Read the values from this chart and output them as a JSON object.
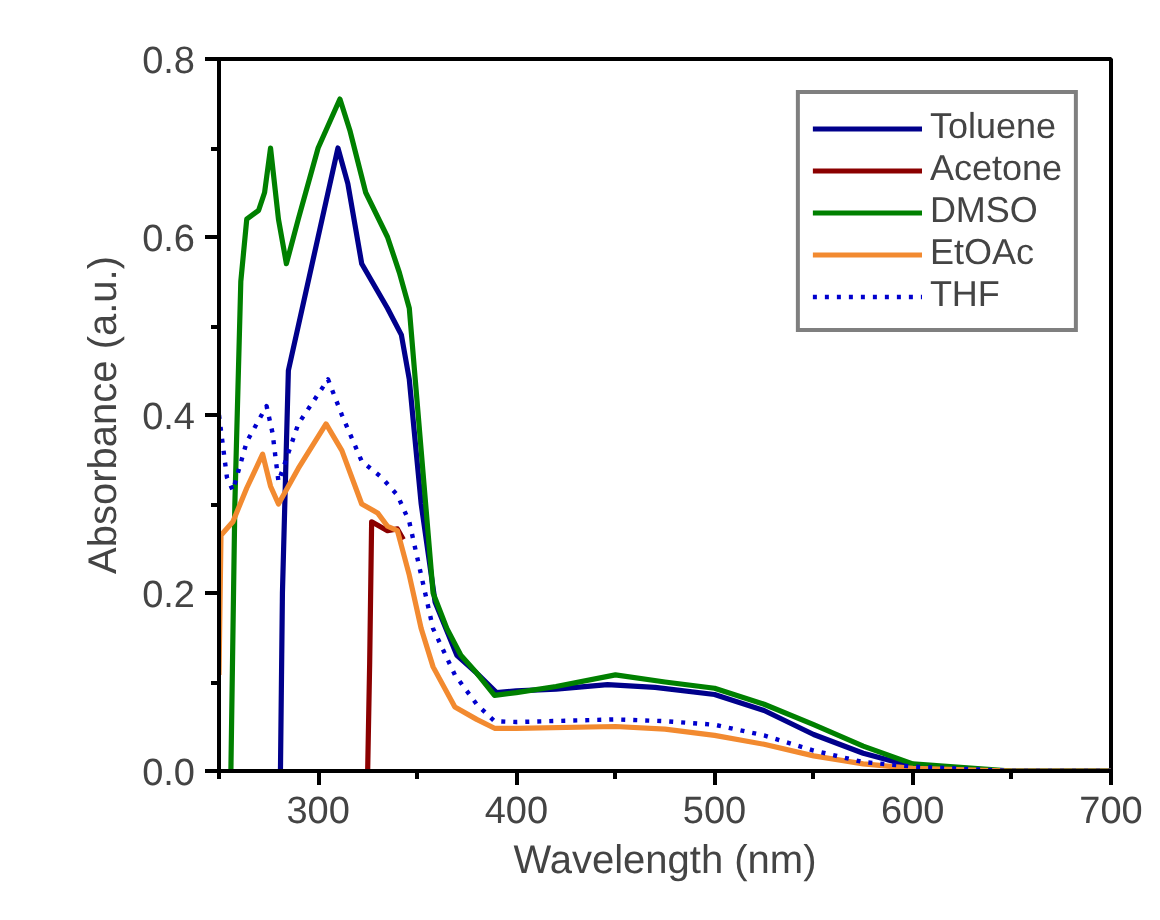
{
  "chart_data": {
    "type": "line",
    "xlabel": "Wavelength (nm)",
    "ylabel": "Absorbance (a.u.)",
    "xlim": [
      250,
      700
    ],
    "ylim": [
      0,
      0.8
    ],
    "xticks": [
      {
        "value": 250,
        "label": null
      },
      300,
      {
        "value": 350,
        "label": null
      },
      400,
      {
        "value": 450,
        "label": null
      },
      500,
      {
        "value": 550,
        "label": null
      },
      600,
      {
        "value": 650,
        "label": null
      },
      700
    ],
    "yticks": [
      "0.0",
      {
        "value": 0.1,
        "label": null
      },
      0.2,
      {
        "value": 0.3,
        "label": null
      },
      0.4,
      {
        "value": 0.5,
        "label": null
      },
      0.6,
      {
        "value": 0.7,
        "label": null
      },
      0.8
    ],
    "grid": false,
    "legend": "top right",
    "marker": "none",
    "series": [
      {
        "name": "Toluene",
        "color": "#00008b",
        "line_style": "solid",
        "x": [
          281,
          282,
          285,
          290,
          300,
          310,
          315,
          322,
          335,
          342,
          346,
          352,
          359,
          370,
          380,
          390,
          400,
          420,
          446,
          470,
          500,
          525,
          550,
          575,
          600,
          620,
          650,
          700
        ],
        "values": [
          0,
          0.2,
          0.45,
          0.5,
          0.6,
          0.7,
          0.66,
          0.57,
          0.52,
          0.49,
          0.44,
          0.3,
          0.19,
          0.13,
          0.11,
          0.088,
          0.09,
          0.092,
          0.097,
          0.094,
          0.086,
          0.068,
          0.041,
          0.02,
          0.005,
          0.001,
          0,
          0
        ]
      },
      {
        "name": "Acetone",
        "color": "#8b0000",
        "line_style": "solid",
        "x": [
          325,
          326,
          327,
          331,
          335,
          340,
          343
        ],
        "values": [
          0,
          0.12,
          0.28,
          0.275,
          0.27,
          0.272,
          0.26
        ]
      },
      {
        "name": "DMSO",
        "color": "#008000",
        "line_style": "solid",
        "x": [
          256,
          258,
          261,
          264,
          270,
          273,
          276,
          280,
          284,
          290,
          300,
          311,
          316,
          324,
          335,
          341,
          346,
          352,
          358,
          365,
          372,
          380,
          389,
          400,
          420,
          450,
          475,
          500,
          525,
          550,
          575,
          600,
          650,
          700
        ],
        "values": [
          0,
          0.3,
          0.55,
          0.62,
          0.63,
          0.65,
          0.7,
          0.62,
          0.57,
          0.62,
          0.7,
          0.755,
          0.72,
          0.65,
          0.6,
          0.56,
          0.52,
          0.36,
          0.2,
          0.16,
          0.13,
          0.11,
          0.085,
          0.088,
          0.095,
          0.108,
          0.1,
          0.093,
          0.075,
          0.052,
          0.028,
          0.008,
          0,
          0
        ]
      },
      {
        "name": "EtOAc",
        "color": "#f28a30",
        "line_style": "solid",
        "x": [
          250,
          251,
          257,
          264,
          272,
          276,
          280,
          290,
          304,
          312,
          322,
          330,
          335,
          340,
          346,
          352,
          358,
          369,
          380,
          389,
          400,
          450,
          475,
          500,
          525,
          550,
          575,
          600,
          650,
          700
        ],
        "values": [
          0.108,
          0.265,
          0.28,
          0.318,
          0.356,
          0.32,
          0.3,
          0.34,
          0.39,
          0.36,
          0.3,
          0.29,
          0.275,
          0.27,
          0.22,
          0.16,
          0.117,
          0.072,
          0.058,
          0.048,
          0.048,
          0.05,
          0.047,
          0.04,
          0.03,
          0.017,
          0.008,
          0.003,
          0,
          0
        ]
      },
      {
        "name": "THF",
        "color": "#0000cd",
        "line_style": "dotted",
        "x": [
          250,
          254,
          257,
          264,
          274,
          277,
          280,
          290,
          305,
          312,
          322,
          332,
          340,
          346,
          352,
          358,
          369,
          380,
          389,
          400,
          450,
          475,
          500,
          525,
          550,
          575,
          600,
          650,
          700
        ],
        "values": [
          0.4,
          0.33,
          0.315,
          0.37,
          0.41,
          0.38,
          0.325,
          0.39,
          0.44,
          0.4,
          0.348,
          0.33,
          0.31,
          0.28,
          0.22,
          0.16,
          0.108,
          0.075,
          0.056,
          0.055,
          0.058,
          0.056,
          0.052,
          0.04,
          0.023,
          0.01,
          0.005,
          0,
          0
        ]
      }
    ]
  }
}
